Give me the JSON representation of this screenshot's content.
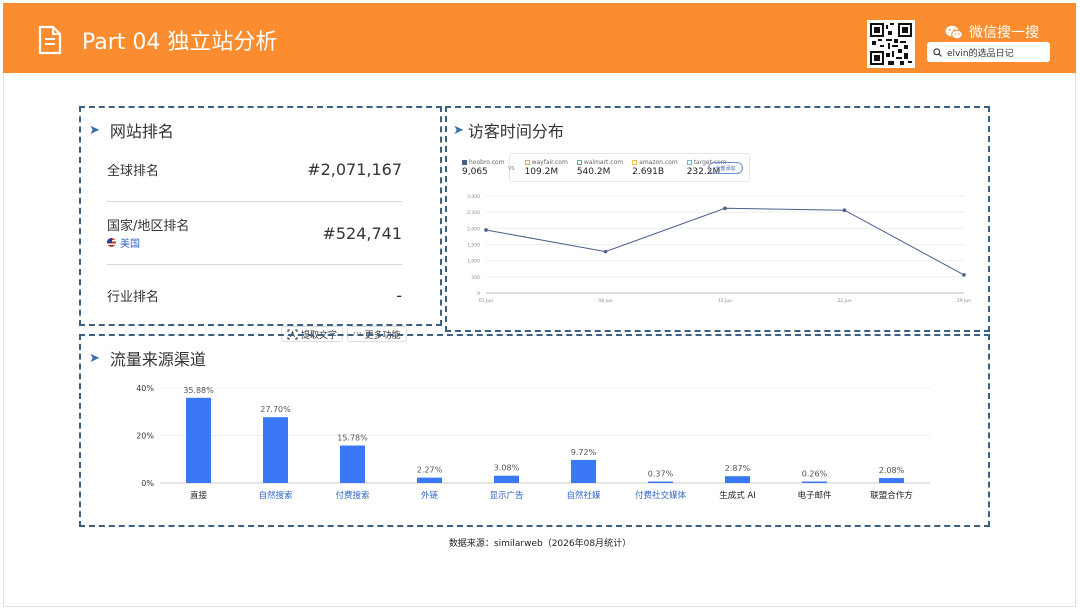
{
  "header": {
    "title": "Part 04 独立站分析",
    "wechat_label": "微信搜一搜",
    "search_value": "elvin的选品日记",
    "bg_color": "#fb8c2f"
  },
  "ranking": {
    "title": "网站排名",
    "global_label": "全球排名",
    "global_value": "#2,071,167",
    "country_label": "国家/地区排名",
    "country_name": "美国",
    "country_value": "#524,741",
    "industry_label": "行业排名",
    "industry_value": "-"
  },
  "visits": {
    "title": "访客时间分布",
    "compare_button": "全部添加",
    "vs": "VS",
    "legend": [
      {
        "name": "hoobro.com",
        "value": "9,065",
        "color": "#4a5f8d"
      },
      {
        "name": "wayfair.com",
        "value": "109.2M",
        "color": "#f0a05a"
      },
      {
        "name": "walmart.com",
        "value": "540.2M",
        "color": "#5ab28a"
      },
      {
        "name": "amazon.com",
        "value": "2.691B",
        "color": "#f2c14e"
      },
      {
        "name": "target.com",
        "value": "232.2M",
        "color": "#59c3d6"
      }
    ]
  },
  "toolbar": {
    "extract_text": "提取文字",
    "more": "更多功能"
  },
  "traffic": {
    "title": "流量来源渠道"
  },
  "source_caption": "数据来源：similarweb（2026年08月统计）",
  "chart_data": [
    {
      "type": "line",
      "title": "访客时间分布",
      "x": [
        "01 Jun",
        "08 Jun",
        "15 Jun",
        "22 Jun",
        "29 Jun"
      ],
      "series": [
        {
          "name": "hoobro.com",
          "values": [
            1950,
            1280,
            2620,
            2560,
            560
          ]
        }
      ],
      "yticks": [
        "0",
        "500",
        "1,000",
        "1,500",
        "2,000",
        "2,500",
        "3,000"
      ],
      "ylim": [
        0,
        3000
      ],
      "color": "#4a5f8d",
      "grid": true
    },
    {
      "type": "bar",
      "title": "流量来源渠道",
      "categories": [
        "直接",
        "自然搜索",
        "付费搜索",
        "外链",
        "显示广告",
        "自然社媒",
        "付费社交媒体",
        "生成式 AI",
        "电子邮件",
        "联盟合作方"
      ],
      "values": [
        35.88,
        27.7,
        15.78,
        2.27,
        3.08,
        9.72,
        0.37,
        2.87,
        0.26,
        2.08
      ],
      "labels": [
        "35.88%",
        "27.70%",
        "15.78%",
        "2.27%",
        "3.08%",
        "9.72%",
        "0.37%",
        "2.87%",
        "0.26%",
        "2.08%"
      ],
      "category_colors": [
        "#222222",
        "#2f64c8",
        "#2f64c8",
        "#2f64c8",
        "#2f64c8",
        "#2f64c8",
        "#2f64c8",
        "#222222",
        "#222222",
        "#222222"
      ],
      "yticks": [
        "0%",
        "20%",
        "40%"
      ],
      "ylim": [
        0,
        40
      ],
      "color": "#3b78f5",
      "grid": true
    }
  ]
}
